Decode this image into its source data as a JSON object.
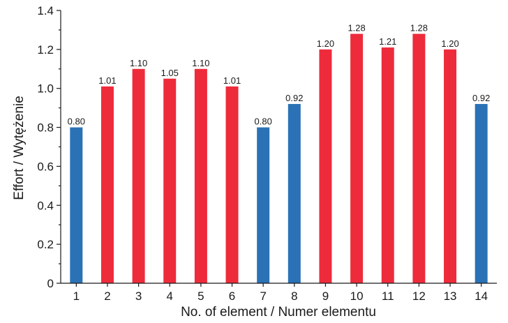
{
  "chart_data": {
    "type": "bar",
    "categories": [
      "1",
      "2",
      "3",
      "4",
      "5",
      "6",
      "7",
      "8",
      "9",
      "10",
      "11",
      "12",
      "13",
      "14"
    ],
    "values": [
      0.8,
      1.01,
      1.1,
      1.05,
      1.1,
      1.01,
      0.8,
      0.92,
      1.2,
      1.28,
      1.21,
      1.28,
      1.2,
      0.92
    ],
    "value_labels": [
      "0.80",
      "1.01",
      "1.10",
      "1.05",
      "1.10",
      "1.01",
      "0.80",
      "0.92",
      "1.20",
      "1.28",
      "1.21",
      "1.28",
      "1.20",
      "0.92"
    ],
    "bar_colors": [
      "#2a72b5",
      "#ee2b3b",
      "#ee2b3b",
      "#ee2b3b",
      "#ee2b3b",
      "#ee2b3b",
      "#2a72b5",
      "#2a72b5",
      "#ee2b3b",
      "#ee2b3b",
      "#ee2b3b",
      "#ee2b3b",
      "#ee2b3b",
      "#2a72b5"
    ],
    "title": "",
    "xlabel": "No. of element /  Numer elementu",
    "ylabel": "Effort / Wytężenie",
    "ylim": [
      0,
      1.4
    ],
    "yticks": [
      "0",
      "0.2",
      "0.4",
      "0.6",
      "0.8",
      "1.0",
      "1.2",
      "1.4"
    ],
    "grid": false,
    "legend": "none"
  }
}
